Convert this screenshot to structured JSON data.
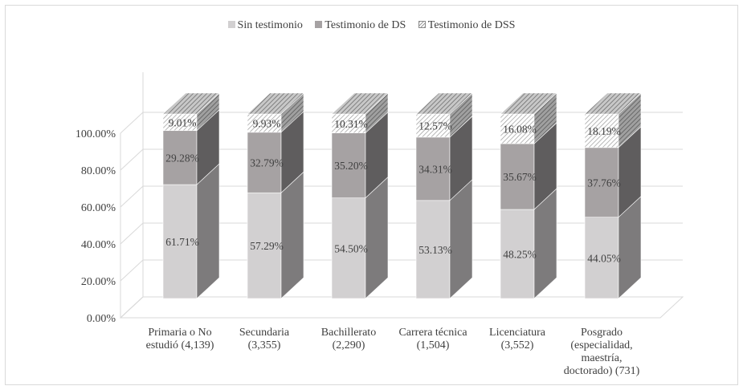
{
  "chart_data": {
    "type": "bar",
    "stacked": true,
    "three_d": true,
    "categories": [
      "Primaria o No estudió (4,139)",
      "Secundaria (3,355)",
      "Bachillerato (2,290)",
      "Carrera técnica (1,504)",
      "Licenciatura (3,552)",
      "Posgrado (especialidad, maestría, doctorado) (731)"
    ],
    "category_lines": [
      [
        "Primaria o No",
        "estudió (4,139)"
      ],
      [
        "Secundaria",
        "(3,355)"
      ],
      [
        "Bachillerato",
        "(2,290)"
      ],
      [
        "Carrera técnica",
        "(1,504)"
      ],
      [
        "Licenciatura",
        "(3,552)"
      ],
      [
        "Posgrado",
        "(especialidad,",
        "maestría,",
        "doctorado) (731)"
      ]
    ],
    "series": [
      {
        "name": "Sin testimonio",
        "values": [
          61.71,
          57.29,
          54.5,
          53.13,
          48.25,
          44.05
        ],
        "labels": [
          "61.71%",
          "57.29%",
          "54.50%",
          "53.13%",
          "48.25%",
          "44.05%"
        ]
      },
      {
        "name": "Testimonio de DS",
        "values": [
          29.28,
          32.79,
          35.2,
          34.31,
          35.67,
          37.76
        ],
        "labels": [
          "29.28%",
          "32.79%",
          "35.20%",
          "34.31%",
          "35.67%",
          "37.76%"
        ]
      },
      {
        "name": "Testimonio de DSS",
        "values": [
          9.01,
          9.93,
          10.31,
          12.57,
          16.08,
          18.19
        ],
        "labels": [
          "9.01%",
          "9.93%",
          "10.31%",
          "12.57%",
          "16.08%",
          "18.19%"
        ]
      }
    ],
    "y_ticks": [
      0,
      20,
      40,
      60,
      80,
      100
    ],
    "y_tick_labels": [
      "0.00%",
      "20.00%",
      "40.00%",
      "60.00%",
      "80.00%",
      "100.00%"
    ],
    "ylim": [
      0,
      100
    ],
    "title": "",
    "xlabel": "",
    "ylabel": "",
    "grid": true,
    "legend_position": "top",
    "colors": {
      "sin_front": "#d2d0d1",
      "sin_side": "#7d7b7c",
      "ds_front": "#a6a2a3",
      "ds_side": "#5f5d5e",
      "dss_front": "#f2f2f2",
      "dss_side": "#8a8a8a",
      "grid": "#d9d9d9",
      "text": "#404040"
    }
  }
}
